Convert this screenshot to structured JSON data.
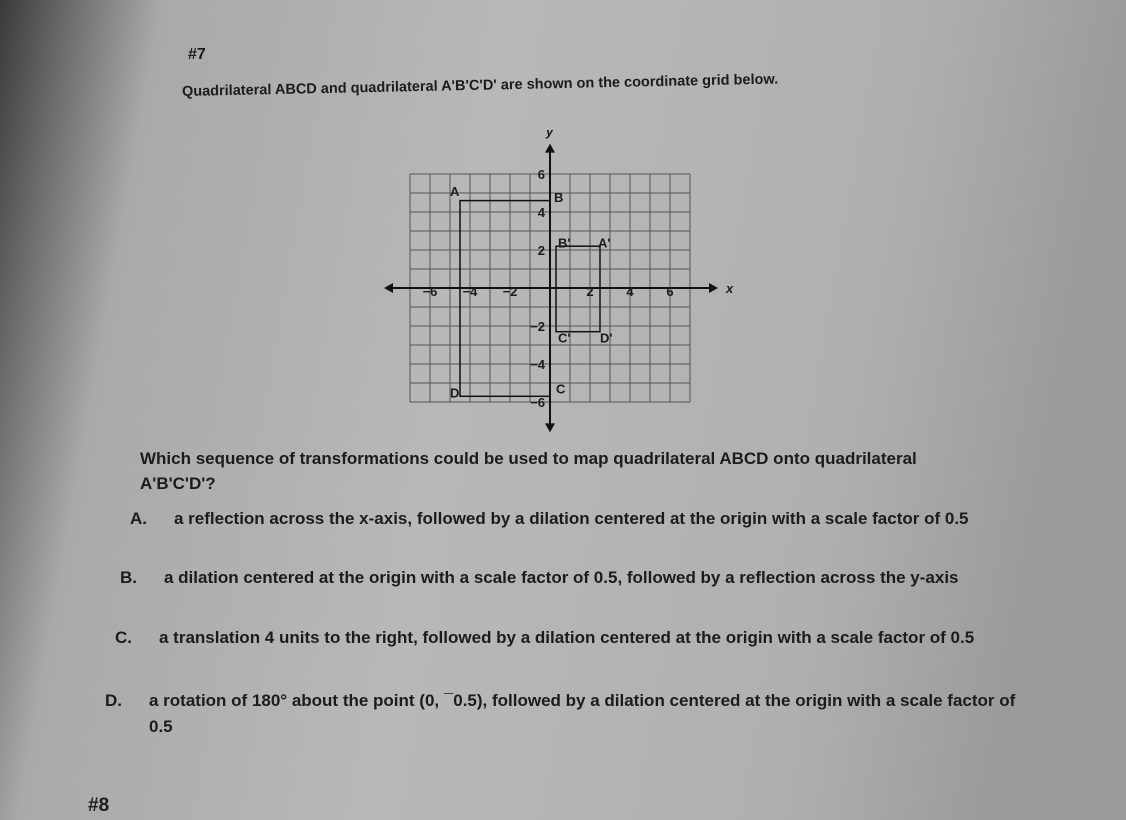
{
  "problem_number": "#7",
  "intro": "Quadrilateral ABCD and quadrilateral A'B'C'D' are shown on the coordinate grid below.",
  "graph": {
    "x_axis_label": "x",
    "y_axis_label": "y",
    "x_ticks": [
      "−6",
      "−4",
      "−2",
      "2",
      "4",
      "6"
    ],
    "y_ticks": [
      "6",
      "4",
      "2",
      "−2",
      "−4",
      "−6"
    ],
    "points": {
      "A": "A",
      "B": "B",
      "C": "C",
      "D": "D",
      "A_prime": "A'",
      "B_prime": "B'",
      "C_prime": "C'",
      "D_prime": "D'"
    }
  },
  "question": "Which sequence of transformations could be used to map quadrilateral ABCD onto quadrilateral A'B'C'D'?",
  "choices": [
    {
      "letter": "A.",
      "text": "a reflection across the x-axis, followed by a dilation centered at the origin with a scale factor of 0.5"
    },
    {
      "letter": "B.",
      "text": "a dilation centered at the origin with a scale factor of 0.5, followed by a reflection across the y-axis"
    },
    {
      "letter": "C.",
      "text": "a translation 4 units to the right, followed by a dilation centered at the origin with a scale factor of 0.5"
    },
    {
      "letter": "D.",
      "text": "a rotation of 180° about the point (0, ¯0.5), followed by a dilation centered at the origin with a scale factor of 0.5"
    }
  ],
  "next_problem": "#8"
}
